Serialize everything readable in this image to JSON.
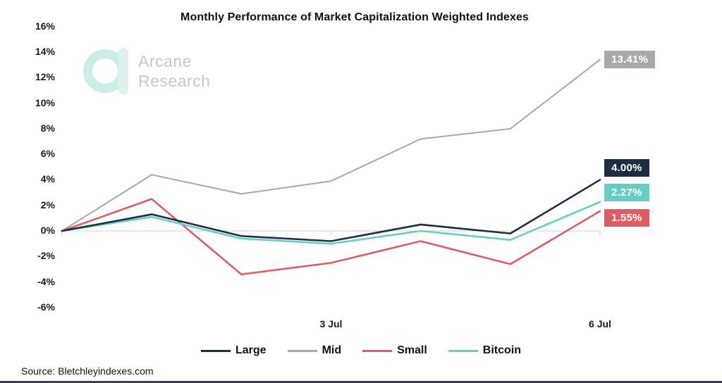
{
  "chart": {
    "title": "Monthly Performance of Market Capitalization Weighted Indexes"
  },
  "logo": {
    "line1": "Arcane",
    "line2": "Research",
    "color": "#cdebe7"
  },
  "source": "Source: Bletchleyindexes.com",
  "chart_data": {
    "type": "line",
    "x_points": 7,
    "x_tick_labels": [
      {
        "index": 3,
        "label": "3 Jul"
      },
      {
        "index": 6,
        "label": "6 Jul"
      }
    ],
    "y_ticks": [
      16,
      14,
      12,
      10,
      8,
      6,
      4,
      2,
      0,
      -2,
      -4,
      -6
    ],
    "y_tick_suffix": "%",
    "ylim": [
      -6,
      16
    ],
    "grid": "zero-line-only",
    "zero_line_color": "#d9d9d9",
    "legend_position": "bottom",
    "series": [
      {
        "name": "Large",
        "color": "#1e2c44",
        "values": [
          0,
          1.3,
          -0.4,
          -0.8,
          0.5,
          -0.2,
          4.0
        ],
        "end_label": "4.00%"
      },
      {
        "name": "Mid",
        "color": "#a8a8a8",
        "values": [
          0,
          4.4,
          2.9,
          3.9,
          7.2,
          8.0,
          13.41
        ],
        "end_label": "13.41%"
      },
      {
        "name": "Small",
        "color": "#e05c63",
        "values": [
          0,
          2.5,
          -3.4,
          -2.5,
          -0.8,
          -2.6,
          1.55
        ],
        "end_label": "1.55%"
      },
      {
        "name": "Bitcoin",
        "color": "#66cfc5",
        "values": [
          0,
          1.1,
          -0.6,
          -1.0,
          0.0,
          -0.7,
          2.27
        ],
        "end_label": "2.27%"
      }
    ]
  }
}
